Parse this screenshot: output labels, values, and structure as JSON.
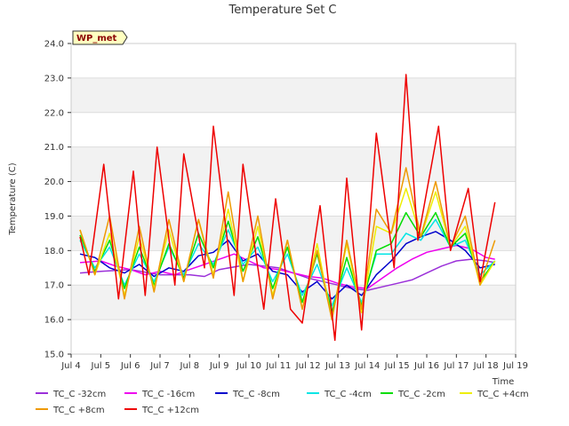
{
  "chart_data": {
    "type": "line",
    "title": "Temperature Set C",
    "xlabel": "Time",
    "ylabel": "Temperature (C)",
    "badge": "WP_met",
    "xlim": [
      4,
      19
    ],
    "ylim": [
      15.0,
      24.0
    ],
    "x_ticks": [
      {
        "x": 4,
        "label": "Jul 4"
      },
      {
        "x": 5,
        "label": "Jul 5"
      },
      {
        "x": 6,
        "label": "Jul 6"
      },
      {
        "x": 7,
        "label": "Jul 7"
      },
      {
        "x": 8,
        "label": "Jul 8"
      },
      {
        "x": 9,
        "label": "Jul 9"
      },
      {
        "x": 10,
        "label": "Jul 10"
      },
      {
        "x": 11,
        "label": "Jul 11"
      },
      {
        "x": 12,
        "label": "Jul 12"
      },
      {
        "x": 13,
        "label": "Jul 13"
      },
      {
        "x": 14,
        "label": "Jul 14"
      },
      {
        "x": 15,
        "label": "Jul 15"
      },
      {
        "x": 16,
        "label": "Jul 16"
      },
      {
        "x": 17,
        "label": "Jul 17"
      },
      {
        "x": 18,
        "label": "Jul 18"
      },
      {
        "x": 19,
        "label": "Jul 19"
      }
    ],
    "y_ticks": [
      "15.0",
      "16.0",
      "17.0",
      "18.0",
      "19.0",
      "20.0",
      "21.0",
      "22.0",
      "23.0",
      "24.0"
    ],
    "series": [
      {
        "name": "TC_C -32cm",
        "color": "#9b30d9",
        "x": [
          4.3,
          5.0,
          6.0,
          7.0,
          8.0,
          8.5,
          9.0,
          10.0,
          11.0,
          12.0,
          13.0,
          13.5,
          14.0,
          14.5,
          15.0,
          15.5,
          16.0,
          16.5,
          17.0,
          17.5,
          18.0,
          18.3
        ],
        "y": [
          17.35,
          17.4,
          17.45,
          17.3,
          17.3,
          17.25,
          17.45,
          17.6,
          17.5,
          17.2,
          17.0,
          16.9,
          16.85,
          16.95,
          17.05,
          17.15,
          17.35,
          17.55,
          17.7,
          17.75,
          17.7,
          17.65
        ]
      },
      {
        "name": "TC_C -16cm",
        "color": "#ee00ee",
        "x": [
          4.3,
          5.0,
          5.5,
          6.0,
          6.5,
          7.0,
          7.5,
          8.0,
          8.5,
          9.0,
          9.5,
          10.0,
          10.5,
          11.0,
          11.5,
          12.0,
          12.5,
          13.0,
          13.5,
          14.0,
          14.5,
          15.0,
          15.5,
          16.0,
          16.5,
          17.0,
          17.5,
          18.0,
          18.3
        ],
        "y": [
          17.65,
          17.7,
          17.55,
          17.45,
          17.3,
          17.4,
          17.3,
          17.45,
          17.6,
          17.75,
          17.9,
          17.7,
          17.5,
          17.45,
          17.35,
          17.25,
          17.2,
          17.05,
          16.95,
          16.9,
          17.2,
          17.5,
          17.75,
          17.95,
          18.05,
          18.15,
          18.05,
          17.8,
          17.75
        ]
      },
      {
        "name": "TC_C -8cm",
        "color": "#0000cc",
        "x": [
          4.3,
          4.8,
          5.3,
          5.8,
          6.3,
          6.8,
          7.3,
          7.8,
          8.3,
          8.8,
          9.3,
          9.8,
          10.3,
          10.8,
          11.3,
          11.8,
          12.3,
          12.8,
          13.3,
          13.8,
          14.3,
          14.8,
          15.3,
          15.8,
          16.3,
          16.8,
          17.3,
          17.8,
          18.3
        ],
        "y": [
          17.9,
          17.8,
          17.5,
          17.35,
          17.6,
          17.25,
          17.5,
          17.4,
          17.85,
          17.95,
          18.3,
          17.7,
          17.9,
          17.4,
          17.3,
          16.8,
          17.1,
          16.6,
          17.0,
          16.7,
          17.3,
          17.7,
          18.2,
          18.4,
          18.55,
          18.3,
          18.0,
          17.5,
          17.6
        ]
      },
      {
        "name": "TC_C -4cm",
        "color": "#00e5e5",
        "x": [
          4.3,
          4.8,
          5.3,
          5.8,
          6.3,
          6.8,
          7.3,
          7.8,
          8.3,
          8.8,
          9.3,
          9.8,
          10.3,
          10.8,
          11.3,
          11.8,
          12.3,
          12.8,
          13.3,
          13.8,
          14.3,
          14.8,
          15.3,
          15.8,
          16.3,
          16.8,
          17.3,
          17.8,
          18.3
        ],
        "y": [
          18.3,
          17.5,
          18.1,
          17.0,
          17.9,
          17.1,
          18.1,
          17.3,
          18.2,
          17.6,
          18.6,
          17.6,
          18.1,
          17.1,
          17.9,
          16.7,
          17.6,
          16.4,
          17.5,
          16.5,
          17.9,
          17.9,
          18.5,
          18.3,
          18.9,
          18.1,
          18.3,
          17.3,
          17.7
        ]
      },
      {
        "name": "TC_C -2cm",
        "color": "#00dd00",
        "x": [
          4.3,
          4.8,
          5.3,
          5.8,
          6.3,
          6.8,
          7.3,
          7.8,
          8.3,
          8.8,
          9.3,
          9.8,
          10.3,
          10.8,
          11.3,
          11.8,
          12.3,
          12.8,
          13.3,
          13.8,
          14.3,
          14.8,
          15.3,
          15.8,
          16.3,
          16.8,
          17.3,
          17.8,
          18.3
        ],
        "y": [
          18.45,
          17.4,
          18.3,
          16.9,
          18.1,
          17.0,
          18.2,
          17.2,
          18.5,
          17.5,
          18.85,
          17.4,
          18.4,
          16.9,
          18.1,
          16.5,
          17.9,
          16.2,
          17.8,
          16.4,
          18.0,
          18.2,
          19.1,
          18.4,
          19.1,
          18.1,
          18.5,
          17.1,
          17.7
        ]
      },
      {
        "name": "TC_C +4cm",
        "color": "#eeee00",
        "x": [
          4.3,
          4.8,
          5.3,
          5.8,
          6.3,
          6.8,
          7.3,
          7.8,
          8.3,
          8.8,
          9.3,
          9.8,
          10.3,
          10.8,
          11.3,
          11.8,
          12.3,
          12.8,
          13.3,
          13.8,
          14.3,
          14.8,
          15.3,
          15.8,
          16.3,
          16.8,
          17.3,
          17.8,
          18.3
        ],
        "y": [
          18.6,
          17.3,
          18.5,
          16.7,
          18.4,
          16.9,
          18.6,
          17.1,
          18.9,
          17.3,
          19.2,
          17.1,
          18.7,
          16.7,
          18.3,
          16.3,
          18.2,
          16.0,
          18.2,
          16.2,
          18.7,
          18.5,
          19.8,
          18.4,
          19.7,
          18.1,
          18.7,
          17.0,
          17.7
        ]
      },
      {
        "name": "TC_C +8cm",
        "color": "#ee9900",
        "x": [
          4.3,
          4.8,
          5.3,
          5.8,
          6.3,
          6.8,
          7.3,
          7.8,
          8.3,
          8.8,
          9.3,
          9.8,
          10.3,
          10.8,
          11.3,
          11.8,
          12.3,
          12.8,
          13.3,
          13.8,
          14.3,
          14.8,
          15.3,
          15.8,
          16.3,
          16.8,
          17.3,
          17.8,
          18.3
        ],
        "y": [
          18.6,
          17.3,
          19.0,
          16.6,
          18.7,
          16.8,
          18.9,
          17.1,
          18.9,
          17.2,
          19.7,
          17.1,
          19.0,
          16.6,
          18.3,
          16.3,
          18.0,
          16.0,
          18.3,
          16.3,
          19.2,
          18.5,
          20.4,
          18.4,
          20.0,
          18.1,
          19.0,
          17.0,
          18.3
        ]
      },
      {
        "name": "TC_C +12cm",
        "color": "#ee0000",
        "x": [
          4.3,
          4.6,
          5.1,
          5.6,
          6.1,
          6.5,
          6.9,
          7.5,
          7.8,
          8.5,
          8.8,
          9.5,
          9.8,
          10.5,
          10.9,
          11.4,
          11.8,
          12.4,
          12.9,
          13.3,
          13.8,
          14.3,
          14.9,
          15.3,
          15.7,
          16.4,
          16.8,
          17.4,
          17.8,
          18.3
        ],
        "y": [
          18.4,
          17.3,
          20.5,
          16.6,
          20.3,
          16.7,
          21.0,
          17.0,
          20.8,
          17.5,
          21.6,
          16.7,
          20.5,
          16.3,
          19.5,
          16.3,
          15.9,
          19.3,
          15.4,
          20.1,
          15.7,
          21.4,
          17.5,
          23.1,
          18.3,
          21.6,
          18.0,
          19.8,
          17.1,
          19.4
        ]
      }
    ],
    "legend": "bottom",
    "grid": true
  }
}
